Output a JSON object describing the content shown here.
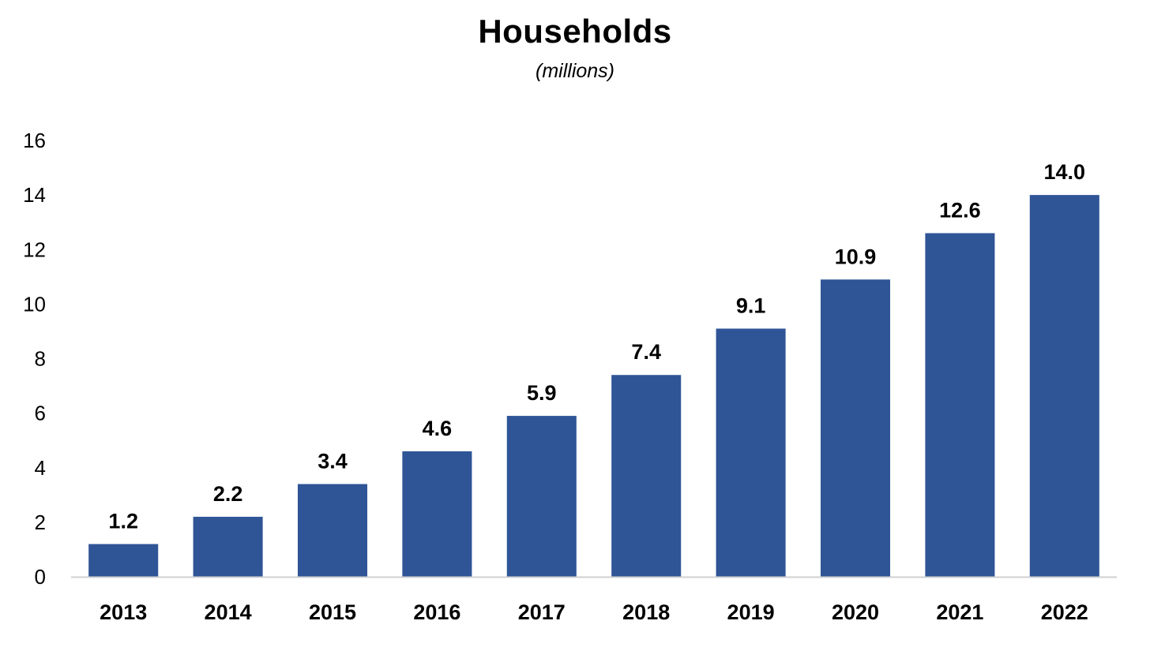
{
  "chart_data": {
    "type": "bar",
    "title": "Households",
    "subtitle": "(millions)",
    "xlabel": "",
    "ylabel": "",
    "categories": [
      "2013",
      "2014",
      "2015",
      "2016",
      "2017",
      "2018",
      "2019",
      "2020",
      "2021",
      "2022"
    ],
    "values": [
      1.2,
      2.2,
      3.4,
      4.6,
      5.9,
      7.4,
      9.1,
      10.9,
      12.6,
      14.0
    ],
    "data_labels": [
      "1.2",
      "2.2",
      "3.4",
      "4.6",
      "5.9",
      "7.4",
      "9.1",
      "10.9",
      "12.6",
      "14.0"
    ],
    "yticks": [
      0,
      2,
      4,
      6,
      8,
      10,
      12,
      14,
      16
    ],
    "ytick_labels": [
      "0",
      "2",
      "4",
      "6",
      "8",
      "10",
      "12",
      "14",
      "16"
    ],
    "ylim": [
      0,
      16
    ],
    "grid": false,
    "legend": "none",
    "colors": {
      "bar": "#2F5597",
      "axis": "#D0D0D0"
    }
  }
}
